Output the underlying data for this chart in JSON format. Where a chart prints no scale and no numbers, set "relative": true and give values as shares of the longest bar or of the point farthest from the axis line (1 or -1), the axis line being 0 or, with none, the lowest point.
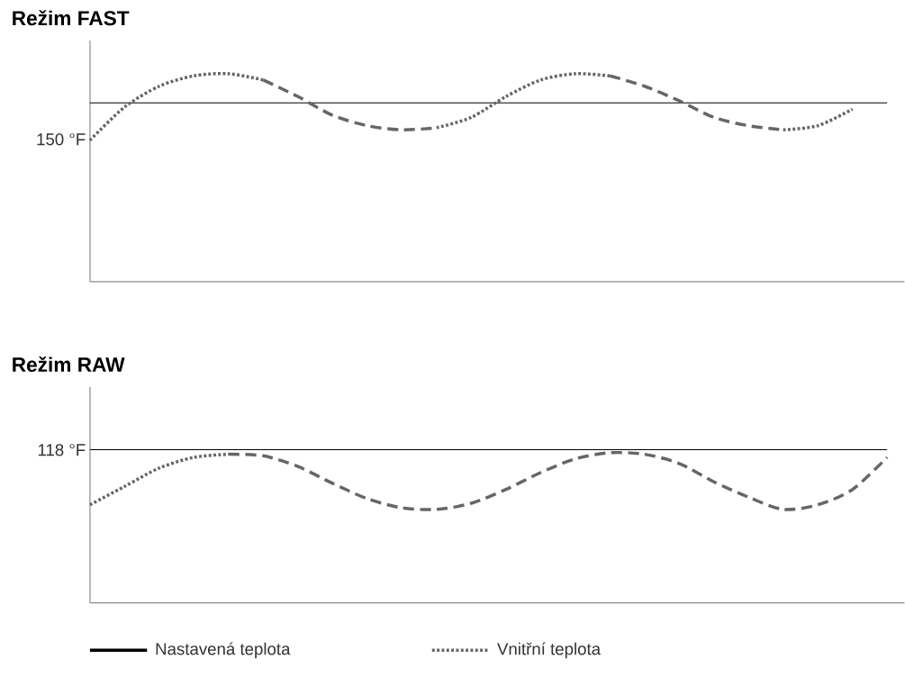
{
  "chart_data": [
    {
      "type": "line",
      "title": "Režim FAST",
      "relative": true,
      "categories": [
        null,
        null,
        null,
        null,
        null,
        null,
        null,
        null,
        null,
        null,
        null,
        null,
        null,
        null,
        null,
        null,
        null,
        null,
        null,
        null,
        null,
        null,
        null,
        null
      ],
      "annotations": [
        "150 °F"
      ],
      "series": [
        {
          "color": "#000000",
          "line_style": "solid",
          "values": [
            0.86,
            0.86,
            0.86,
            0.86,
            0.86,
            0.86,
            0.86,
            0.86,
            0.86,
            0.86,
            0.86,
            0.86,
            0.86,
            0.86,
            0.86,
            0.86,
            0.86,
            0.86,
            0.86,
            0.86,
            0.86,
            0.86,
            0.86,
            0.86
          ]
        },
        {
          "color": "#666666",
          "line_style": "dotted",
          "values": [
            0.68,
            0.84,
            0.94,
            0.99,
            1,
            0.97,
            null,
            null,
            null,
            null,
            null,
            null,
            null,
            null,
            null,
            null,
            null,
            null,
            null,
            null,
            null,
            null,
            null,
            null
          ]
        },
        {
          "color": "#666666",
          "line_style": "dashed",
          "values": [
            null,
            null,
            null,
            null,
            null,
            0.97,
            0.89,
            0.8,
            0.75,
            0.73,
            0.74,
            null,
            null,
            null,
            null,
            null,
            null,
            null,
            null,
            null,
            null,
            null,
            null,
            null
          ]
        },
        {
          "color": "#666666",
          "line_style": "dotted",
          "values": [
            null,
            null,
            null,
            null,
            null,
            null,
            null,
            null,
            null,
            null,
            0.74,
            0.79,
            0.89,
            0.97,
            1,
            0.99,
            null,
            null,
            null,
            null,
            null,
            null,
            null,
            null
          ]
        },
        {
          "color": "#666666",
          "line_style": "dashed",
          "values": [
            null,
            null,
            null,
            null,
            null,
            null,
            null,
            null,
            null,
            null,
            null,
            null,
            null,
            null,
            null,
            0.99,
            0.94,
            0.87,
            0.79,
            0.75,
            0.73,
            null,
            null,
            null
          ]
        },
        {
          "color": "#666666",
          "line_style": "dotted",
          "values": [
            null,
            null,
            null,
            null,
            null,
            null,
            null,
            null,
            null,
            null,
            null,
            null,
            null,
            null,
            null,
            null,
            null,
            null,
            null,
            null,
            0.73,
            0.75,
            0.83,
            null
          ]
        }
      ]
    },
    {
      "type": "line",
      "title": "Režim RAW",
      "relative": true,
      "legend": "bottom",
      "categories": [
        null,
        null,
        null,
        null,
        null,
        null,
        null,
        null,
        null,
        null,
        null,
        null,
        null,
        null,
        null,
        null,
        null,
        null,
        null,
        null,
        null,
        null,
        null,
        null
      ],
      "annotations": [
        "118 °F"
      ],
      "series": [
        {
          "name": "Nastavená teplota",
          "color": "#000000",
          "line_style": "solid",
          "values": [
            1,
            1,
            1,
            1,
            1,
            1,
            1,
            1,
            1,
            1,
            1,
            1,
            1,
            1,
            1,
            1,
            1,
            1,
            1,
            1,
            1,
            1,
            1,
            1
          ]
        },
        {
          "name": "Vnitřní teplota",
          "color": "#666666",
          "line_style": "dotted",
          "values": [
            0.64,
            0.76,
            0.88,
            0.95,
            0.97,
            null,
            null,
            null,
            null,
            null,
            null,
            null,
            null,
            null,
            null,
            null,
            null,
            null,
            null,
            null,
            null,
            null,
            null,
            null
          ]
        },
        {
          "color": "#666666",
          "line_style": "dashed",
          "values": [
            null,
            null,
            null,
            null,
            0.97,
            0.96,
            0.89,
            0.78,
            0.68,
            0.62,
            0.61,
            0.65,
            0.74,
            0.85,
            0.94,
            0.98,
            0.97,
            0.91,
            0.79,
            0.69,
            0.61,
            0.64,
            0.74,
            0.95
          ]
        }
      ]
    }
  ]
}
